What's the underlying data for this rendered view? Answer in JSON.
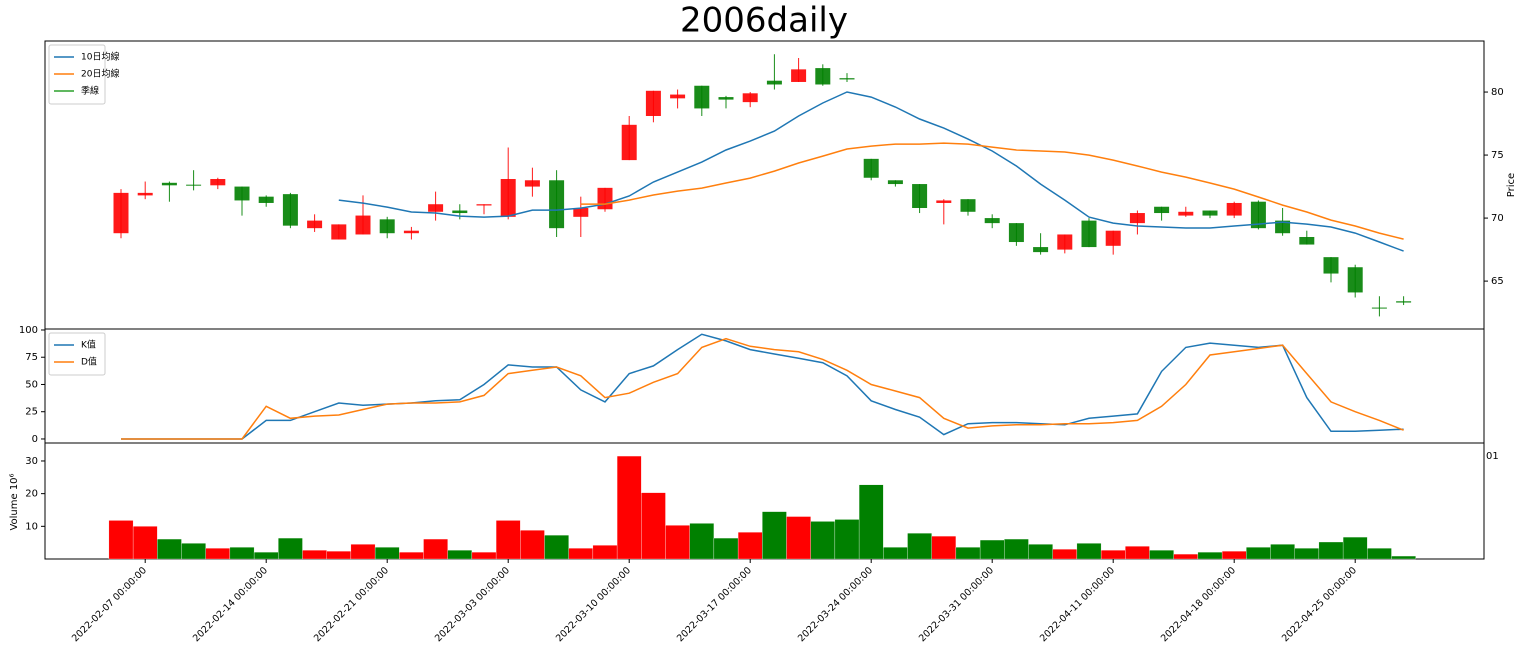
{
  "chart_data": [
    {
      "type": "candlestick",
      "title": "2006daily",
      "ylabel": "Price",
      "open": [
        68.8,
        71.8,
        72.8,
        72.65,
        72.6,
        72.5,
        71.7,
        71.9,
        69.2,
        68.3,
        68.7,
        69.9,
        68.8,
        70.5,
        70.6,
        71.0,
        70.1,
        72.5,
        73.0,
        70.1,
        70.7,
        74.6,
        78.1,
        79.5,
        80.5,
        79.6,
        79.2,
        80.9,
        80.8,
        81.9,
        81.1,
        74.7,
        73.0,
        72.7,
        71.2,
        71.5,
        70.0,
        69.6,
        67.7,
        67.5,
        69.8,
        67.8,
        69.6,
        70.9,
        70.2,
        70.6,
        70.2,
        71.3,
        69.8,
        68.5,
        66.9,
        66.1,
        62.9,
        63.4
      ],
      "high": [
        72.3,
        72.9,
        72.9,
        73.8,
        73.2,
        72.5,
        71.8,
        72.0,
        70.3,
        69.5,
        71.8,
        70.1,
        69.3,
        72.1,
        71.1,
        71.1,
        75.6,
        74.0,
        73.8,
        71.7,
        72.4,
        78.1,
        80.1,
        80.2,
        80.5,
        79.7,
        80.0,
        83.0,
        82.7,
        82.2,
        81.5,
        74.7,
        73.0,
        72.7,
        71.5,
        71.5,
        70.3,
        69.6,
        68.8,
        68.7,
        70.0,
        69.0,
        70.6,
        70.9,
        70.9,
        70.6,
        71.3,
        71.4,
        70.8,
        69.0,
        66.9,
        66.3,
        63.8,
        63.8
      ],
      "low": [
        68.4,
        71.5,
        71.3,
        72.2,
        72.3,
        70.2,
        70.9,
        69.2,
        68.9,
        68.3,
        68.7,
        68.4,
        68.3,
        69.8,
        69.9,
        70.3,
        69.9,
        71.7,
        68.5,
        68.5,
        70.5,
        74.6,
        77.6,
        78.7,
        78.1,
        78.7,
        78.8,
        80.2,
        80.8,
        80.5,
        80.8,
        73.0,
        72.5,
        70.4,
        69.5,
        70.2,
        69.2,
        67.8,
        67.1,
        67.2,
        67.7,
        67.1,
        68.7,
        69.8,
        70.1,
        70.0,
        70.0,
        69.1,
        68.6,
        67.9,
        64.9,
        63.7,
        62.2,
        63.1
      ],
      "close": [
        72.0,
        72.0,
        72.6,
        72.6,
        73.1,
        71.4,
        71.2,
        69.4,
        69.8,
        69.5,
        70.2,
        68.8,
        69.0,
        71.1,
        70.4,
        71.1,
        73.1,
        73.0,
        69.2,
        70.8,
        72.4,
        77.4,
        80.1,
        79.8,
        78.7,
        79.4,
        79.9,
        80.6,
        81.8,
        80.6,
        81.0,
        73.2,
        72.7,
        70.8,
        71.4,
        70.5,
        69.6,
        68.1,
        67.3,
        68.7,
        67.7,
        69.0,
        70.4,
        70.4,
        70.5,
        70.2,
        71.2,
        69.2,
        68.8,
        67.9,
        65.6,
        64.1,
        62.85,
        63.3
      ],
      "up_color": "#ff0000",
      "down_color": "#008000",
      "series": [
        {
          "name": "10日均線",
          "color": "#1f77b4",
          "values": [
            null,
            null,
            null,
            null,
            null,
            null,
            null,
            null,
            null,
            71.43,
            71.19,
            70.87,
            70.48,
            70.4,
            70.16,
            70.08,
            70.16,
            70.63,
            70.63,
            70.79,
            71.11,
            71.75,
            72.86,
            73.65,
            74.44,
            75.4,
            76.11,
            76.9,
            78.1,
            79.13,
            80.0,
            79.6,
            78.81,
            77.86,
            77.14,
            76.27,
            75.32,
            74.13,
            72.7,
            71.43,
            70.08,
            69.6,
            69.37,
            69.29,
            69.21,
            69.21,
            69.37,
            69.52,
            69.68,
            69.52,
            69.29,
            68.81,
            68.1,
            67.38
          ]
        },
        {
          "name": "20日均線",
          "color": "#ff7f0e",
          "values": [
            null,
            null,
            null,
            null,
            null,
            null,
            null,
            null,
            null,
            null,
            null,
            null,
            null,
            null,
            null,
            null,
            null,
            null,
            null,
            71.11,
            71.11,
            71.43,
            71.83,
            72.14,
            72.38,
            72.78,
            73.17,
            73.73,
            74.37,
            74.92,
            75.48,
            75.71,
            75.87,
            75.87,
            75.95,
            75.87,
            75.63,
            75.4,
            75.32,
            75.24,
            75.0,
            74.6,
            74.13,
            73.65,
            73.25,
            72.78,
            72.3,
            71.67,
            71.03,
            70.48,
            69.84,
            69.37,
            68.81,
            68.33
          ]
        },
        {
          "name": "季線",
          "color": "#2ca02c",
          "values": [
            null,
            null,
            null,
            null,
            null,
            null,
            null,
            null,
            null,
            null,
            null,
            null,
            null,
            null,
            null,
            null,
            null,
            null,
            null,
            null,
            null,
            null,
            null,
            null,
            null,
            null,
            null,
            null,
            null,
            null,
            null,
            null,
            null,
            null,
            null,
            null,
            null,
            null,
            null,
            null,
            null,
            null,
            null,
            null,
            null,
            null,
            null,
            null,
            null,
            null,
            null,
            null,
            null,
            null
          ]
        }
      ],
      "ylim": [
        61.2,
        84.05
      ],
      "yticks": [
        65,
        70,
        75,
        80
      ],
      "legend": "upper left"
    },
    {
      "type": "line",
      "series": [
        {
          "name": "K值",
          "color": "#1f77b4",
          "values": [
            0,
            0,
            0,
            0,
            0,
            0,
            17,
            17,
            25,
            33,
            31,
            32,
            33,
            35,
            36,
            50,
            68,
            66,
            66,
            45,
            34,
            60,
            67,
            82,
            96,
            90,
            82,
            78,
            74,
            70,
            58,
            35,
            27,
            20,
            4,
            14,
            15,
            15,
            14,
            13,
            19,
            21,
            23,
            62,
            84,
            88,
            86,
            84,
            86,
            38,
            7,
            7,
            8,
            9
          ]
        },
        {
          "name": "D值",
          "color": "#ff7f0e",
          "values": [
            0,
            0,
            0,
            0,
            0,
            0,
            30,
            19,
            21,
            22,
            27,
            32,
            33,
            33,
            34,
            40,
            60,
            63,
            66,
            58,
            38,
            42,
            52,
            60,
            84,
            92,
            85,
            82,
            80,
            73,
            63,
            50,
            44,
            38,
            19,
            10,
            12,
            13,
            13,
            14,
            14,
            15,
            17,
            30,
            50,
            77,
            80,
            83,
            86,
            60,
            34,
            25,
            17,
            8
          ]
        }
      ],
      "ylim": [
        -3.7,
        100.9
      ],
      "yticks": [
        0,
        25,
        50,
        75,
        100
      ],
      "legend": "upper left"
    },
    {
      "type": "bar",
      "ylabel": "Volume  10⁶",
      "offset_text": "01",
      "categories": [
        null,
        "2022-02-07 00:00:00",
        null,
        null,
        null,
        null,
        "2022-02-14 00:00:00",
        null,
        null,
        null,
        null,
        "2022-02-21 00:00:00",
        null,
        null,
        null,
        null,
        "2022-03-03 00:00:00",
        null,
        null,
        null,
        null,
        "2022-03-10 00:00:00",
        null,
        null,
        null,
        null,
        "2022-03-17 00:00:00",
        null,
        null,
        null,
        null,
        "2022-03-24 00:00:00",
        null,
        null,
        null,
        null,
        "2022-03-31 00:00:00",
        null,
        null,
        null,
        null,
        "2022-04-11 00:00:00",
        null,
        null,
        null,
        null,
        "2022-04-18 00:00:00",
        null,
        null,
        null,
        null,
        "2022-04-25 00:00:00",
        null,
        null
      ],
      "values": [
        11.8,
        10.0,
        6.1,
        4.8,
        3.3,
        3.6,
        2.1,
        6.4,
        2.7,
        2.4,
        4.5,
        3.6,
        2.1,
        6.1,
        2.7,
        2.1,
        11.8,
        8.8,
        7.3,
        3.3,
        4.2,
        31.5,
        20.3,
        10.3,
        10.9,
        6.4,
        8.2,
        14.5,
        13.0,
        11.5,
        12.1,
        22.7,
        3.6,
        7.9,
        7.0,
        3.6,
        5.8,
        6.1,
        4.5,
        3.0,
        4.8,
        2.7,
        3.9,
        2.7,
        1.5,
        2.1,
        2.4,
        3.6,
        4.5,
        3.3,
        5.2,
        6.7,
        3.3,
        0.9
      ],
      "ylim": [
        0,
        35.5
      ],
      "yticks": [
        10,
        20,
        30
      ]
    }
  ]
}
